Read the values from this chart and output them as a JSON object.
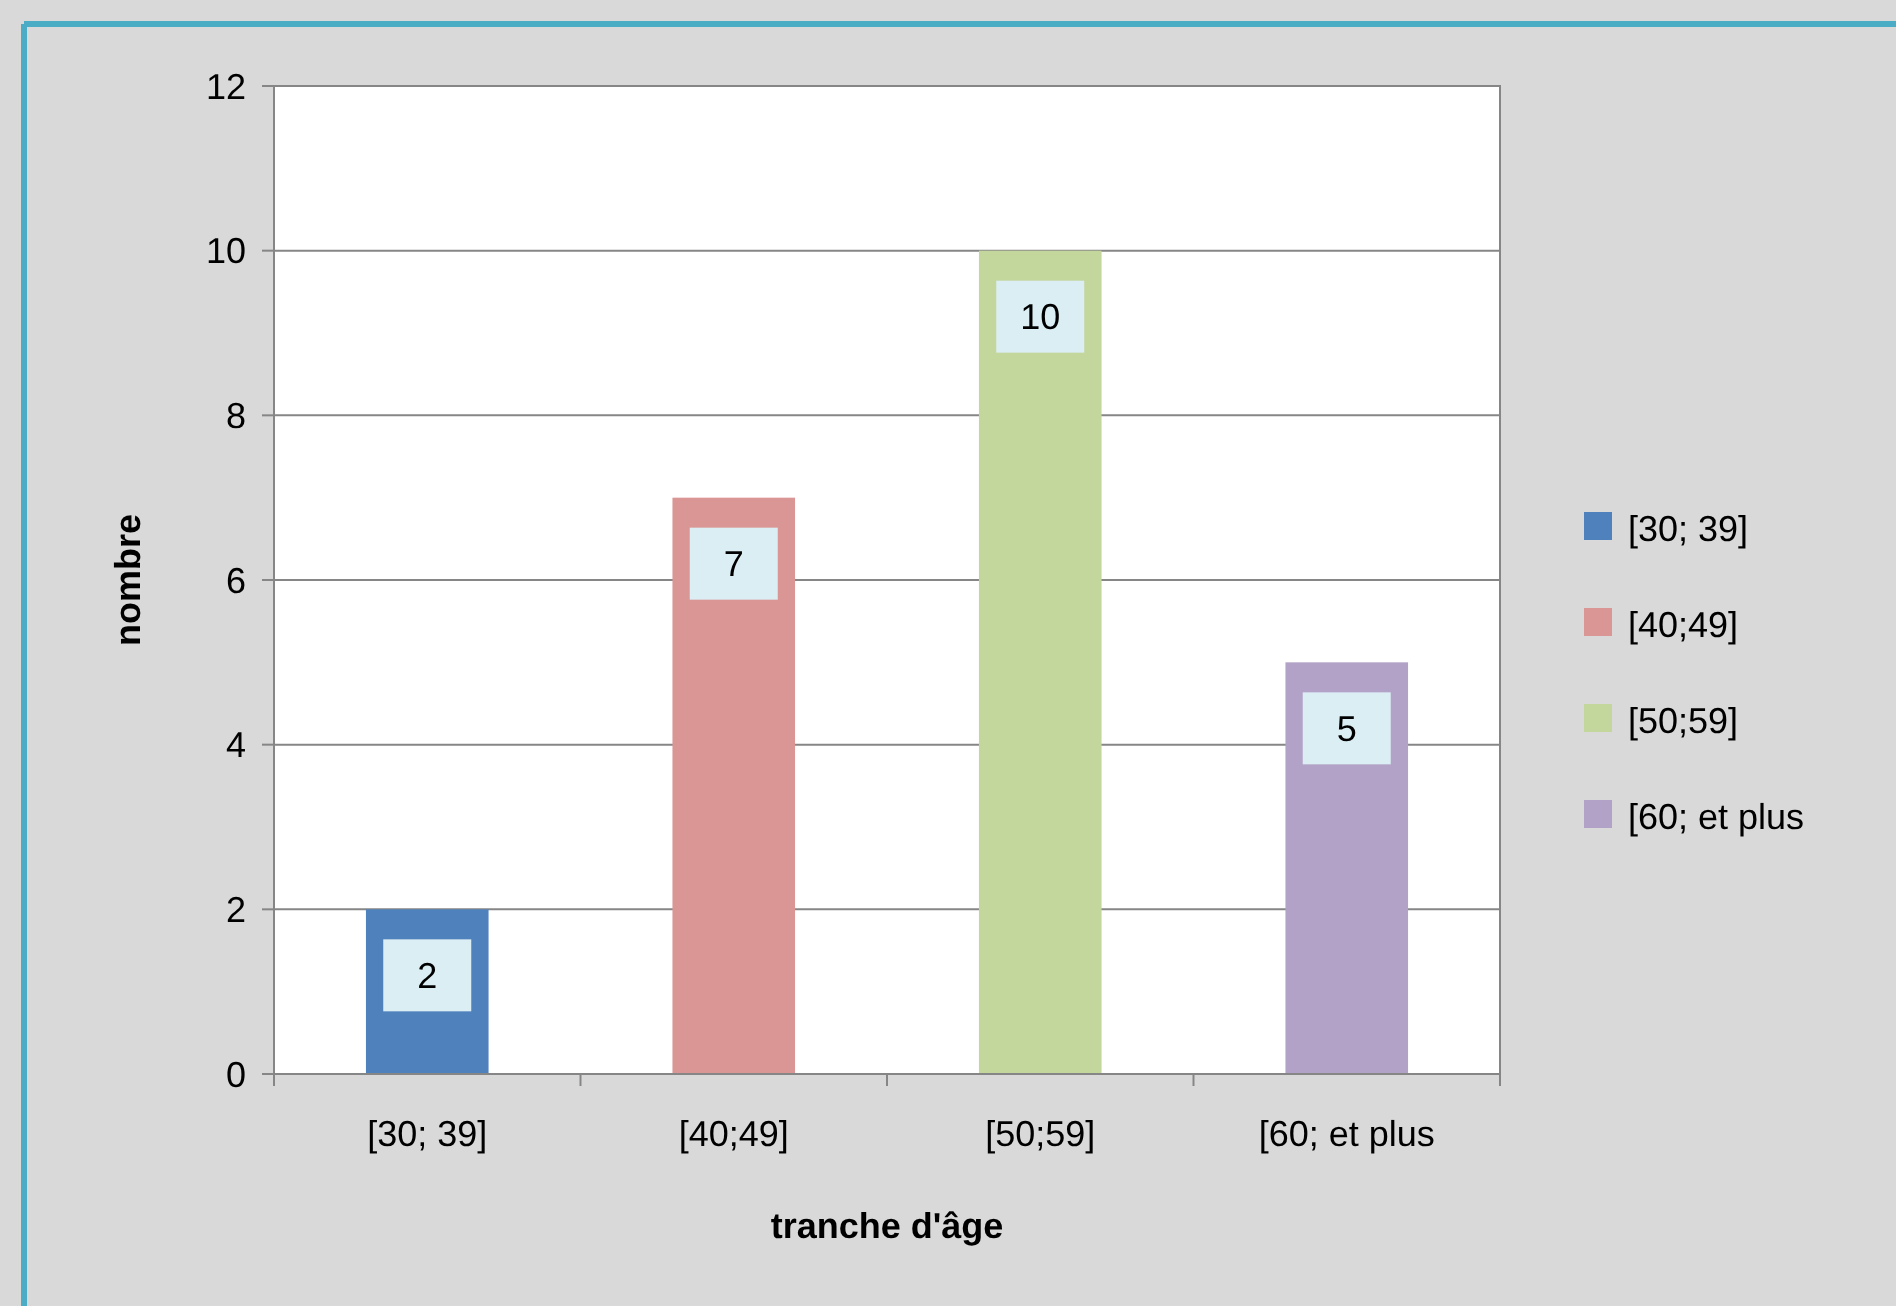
{
  "chart_data": {
    "type": "bar",
    "xlabel": "tranche d'âge",
    "ylabel": "nombre",
    "categories": [
      "[30; 39]",
      "[40;49]",
      "[50;59]",
      "[60; et plus"
    ],
    "series": [
      {
        "name": "[30; 39]",
        "color": "#4f81bd",
        "values": [
          2,
          null,
          null,
          null
        ]
      },
      {
        "name": "[40;49]",
        "color": "#da9694",
        "values": [
          null,
          7,
          null,
          null
        ]
      },
      {
        "name": "[50;59]",
        "color": "#c3d69b",
        "values": [
          null,
          null,
          10,
          null
        ]
      },
      {
        "name": "[60; et plus",
        "color": "#b3a2c7",
        "values": [
          null,
          null,
          null,
          5
        ]
      }
    ],
    "stacked": true,
    "ylim": [
      0,
      12
    ],
    "yticks": [
      0,
      2,
      4,
      6,
      8,
      10,
      12
    ],
    "grid": "y",
    "legend": "right",
    "data_labels": true
  }
}
